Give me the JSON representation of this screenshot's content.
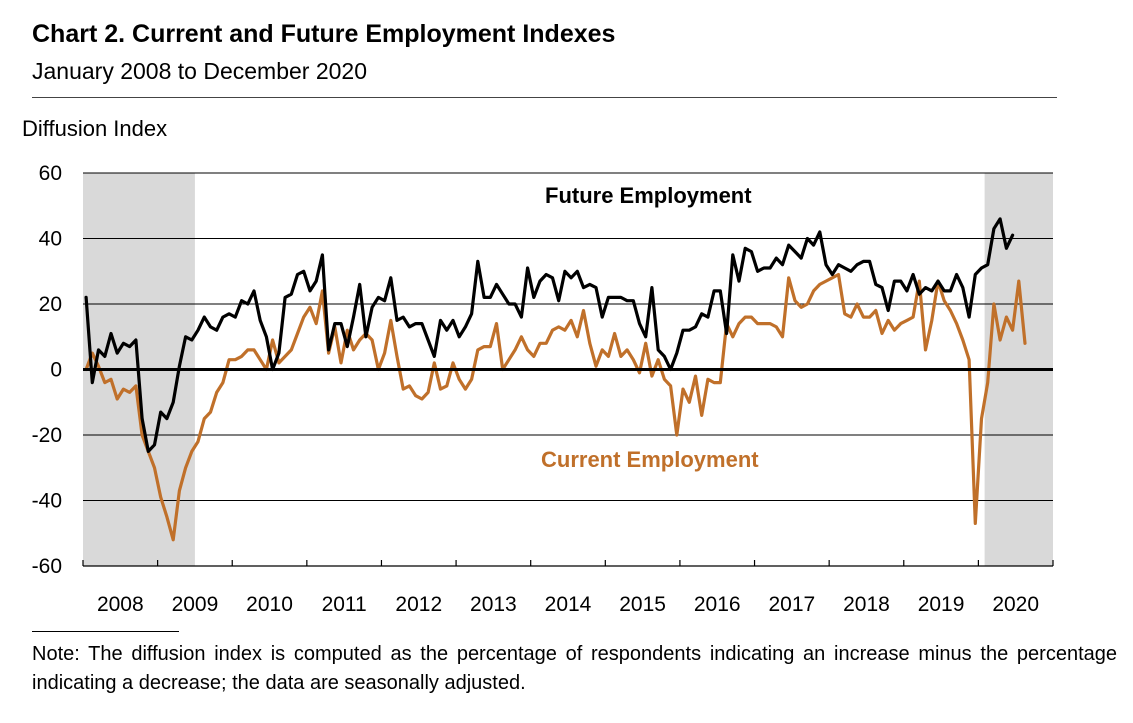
{
  "title": "Chart 2. Current and Future Employment Indexes",
  "subtitle": "January 2008 to December 2020",
  "note": "Note: The diffusion index is computed as the percentage of respondents indicating an increase minus the percentage indicating a decrease; the data are seasonally adjusted.",
  "colors": {
    "future": "#000000",
    "current": "#C0702A",
    "recession": "#D9D9D9",
    "grid": "#000000"
  },
  "chart_data": {
    "type": "line",
    "ylabel": "Diffusion Index",
    "ylim": [
      -60,
      60
    ],
    "yticks": [
      60,
      40,
      20,
      0,
      -20,
      -40,
      -60
    ],
    "years": [
      "2008",
      "2009",
      "2010",
      "2011",
      "2012",
      "2013",
      "2014",
      "2015",
      "2016",
      "2017",
      "2018",
      "2019",
      "2020"
    ],
    "x_start": "2008-01",
    "x_end": "2020-12",
    "grid": true,
    "recession_shading": [
      {
        "start": "2008-01",
        "end": "2009-06"
      },
      {
        "start": "2020-02",
        "end": "2020-12"
      }
    ],
    "series": [
      {
        "name": "Future Employment",
        "values": [
          22,
          -4,
          6,
          4,
          11,
          5,
          8,
          7,
          9,
          -15,
          -25,
          -23,
          -13,
          -15,
          -10,
          1,
          10,
          9,
          12,
          16,
          13,
          12,
          16,
          17,
          16,
          21,
          20,
          24,
          15,
          10,
          0,
          5,
          22,
          23,
          29,
          30,
          24,
          27,
          35,
          6,
          14,
          14,
          7,
          16,
          26,
          10,
          19,
          22,
          21,
          28,
          15,
          16,
          13,
          14,
          14,
          9,
          4,
          15,
          12,
          15,
          10,
          13,
          17,
          33,
          22,
          22,
          26,
          23,
          20,
          20,
          16,
          31,
          22,
          27,
          29,
          28,
          21,
          30,
          28,
          30,
          25,
          26,
          25,
          16,
          22,
          22,
          22,
          21,
          21,
          14,
          10,
          25,
          6,
          4,
          0,
          5,
          12,
          12,
          13,
          17,
          16,
          24,
          24,
          11,
          35,
          27,
          37,
          36,
          30,
          31,
          31,
          34,
          32,
          38,
          36,
          34,
          40,
          38,
          42,
          32,
          29,
          32,
          31,
          30,
          32,
          33,
          33,
          26,
          25,
          18,
          27,
          27,
          24,
          29,
          23,
          25,
          24,
          27,
          24,
          24,
          29,
          25,
          16,
          29,
          31,
          32,
          43,
          46,
          37,
          41
        ]
      },
      {
        "name": "Current Employment",
        "values": [
          0,
          5,
          1,
          -4,
          -3,
          -9,
          -6,
          -7,
          -5,
          -20,
          -25,
          -30,
          -39,
          -45,
          -52,
          -37,
          -30,
          -25,
          -22,
          -15,
          -13,
          -7,
          -4,
          3,
          3,
          4,
          6,
          6,
          3,
          0,
          9,
          2,
          4,
          6,
          11,
          16,
          19,
          14,
          24,
          5,
          13,
          2,
          12,
          6,
          9,
          11,
          9,
          0,
          5,
          15,
          4,
          -6,
          -5,
          -8,
          -9,
          -7,
          2,
          -6,
          -5,
          2,
          -3,
          -6,
          -3,
          6,
          7,
          7,
          14,
          0,
          3,
          6,
          10,
          6,
          4,
          8,
          8,
          12,
          13,
          12,
          15,
          10,
          18,
          8,
          1,
          6,
          4,
          11,
          4,
          6,
          3,
          -1,
          8,
          -2,
          3,
          -3,
          -5,
          -20,
          -6,
          -10,
          -2,
          -14,
          -3,
          -4,
          -4,
          14,
          10,
          14,
          16,
          16,
          14,
          14,
          14,
          13,
          10,
          28,
          21,
          19,
          20,
          24,
          26,
          27,
          28,
          29,
          17,
          16,
          20,
          16,
          16,
          18,
          11,
          15,
          12,
          14,
          15,
          16,
          27,
          6,
          15,
          27,
          21,
          18,
          14,
          9,
          3,
          -47,
          -15,
          -4,
          20,
          9,
          16,
          12,
          27,
          8
        ]
      }
    ]
  }
}
